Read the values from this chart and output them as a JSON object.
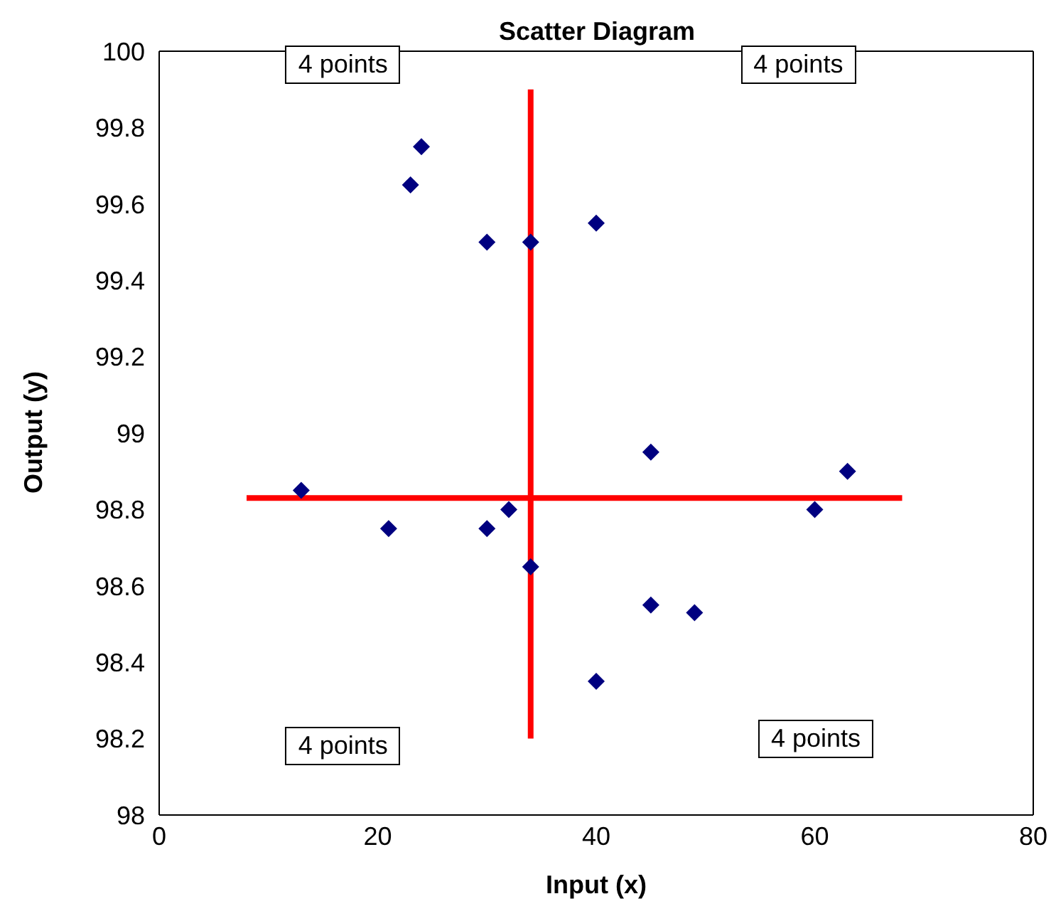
{
  "chart_data": {
    "type": "scatter",
    "title": "Scatter Diagram",
    "xlabel": "Input (x)",
    "ylabel": "Output (y)",
    "xlim": [
      0,
      80
    ],
    "xticks": [
      0,
      20,
      40,
      60,
      80
    ],
    "ylim": [
      98,
      100
    ],
    "yticks": [
      98,
      98.2,
      98.4,
      98.6,
      98.8,
      99,
      99.2,
      99.4,
      99.6,
      99.8,
      100
    ],
    "grid": false,
    "legend": false,
    "marker": "diamond",
    "series": [
      {
        "color": "#000080",
        "x": [
          13,
          21,
          23,
          24,
          30,
          30,
          32,
          34,
          34,
          40,
          40,
          45,
          45,
          49,
          60,
          63
        ],
        "values": [
          98.85,
          98.75,
          99.65,
          99.75,
          99.5,
          98.75,
          98.8,
          99.5,
          98.65,
          99.55,
          98.35,
          98.95,
          98.55,
          98.53,
          98.8,
          98.9
        ]
      },
      {
        "type": "line",
        "color": "#ff0000",
        "marker": "none",
        "x": [
          34,
          34
        ],
        "values": [
          98.2,
          99.9
        ]
      },
      {
        "type": "line",
        "color": "#ff0000",
        "marker": "none",
        "x": [
          8,
          68
        ],
        "values": [
          98.83,
          98.83
        ]
      }
    ],
    "annotations": [
      "4 points",
      "4 points",
      "4 points",
      "4 points"
    ]
  }
}
